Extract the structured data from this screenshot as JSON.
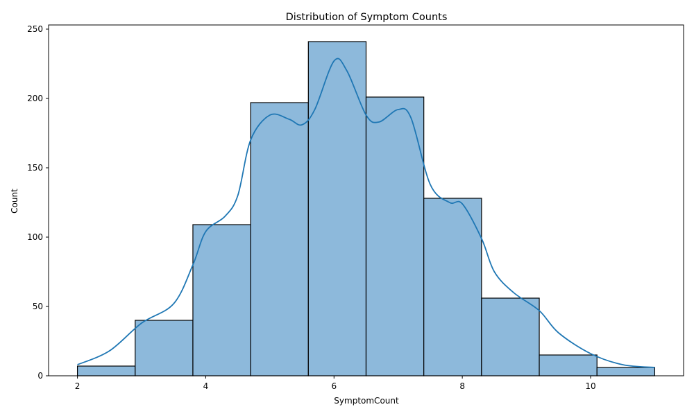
{
  "chart_data": {
    "type": "bar",
    "title": "Distribution of Symptom Counts",
    "xlabel": "SymptomCount",
    "ylabel": "Count",
    "xlim": [
      1.55,
      11.45
    ],
    "ylim": [
      0,
      253
    ],
    "xticks": [
      2,
      4,
      6,
      8,
      10
    ],
    "yticks": [
      0,
      50,
      100,
      150,
      200,
      250
    ],
    "bin_edges": [
      2.0,
      2.9,
      3.8,
      4.7,
      5.6,
      6.5,
      7.4,
      8.3,
      9.2,
      10.1,
      11.0
    ],
    "values": [
      7,
      40,
      109,
      197,
      241,
      201,
      128,
      56,
      15,
      6
    ],
    "kde": {
      "x": [
        2.0,
        2.5,
        3.0,
        3.5,
        3.8,
        4.0,
        4.3,
        4.5,
        4.7,
        5.0,
        5.3,
        5.5,
        5.7,
        6.0,
        6.2,
        6.5,
        6.7,
        7.0,
        7.2,
        7.5,
        7.8,
        8.0,
        8.3,
        8.5,
        8.8,
        9.2,
        9.5,
        10.0,
        10.5,
        11.0
      ],
      "y": [
        8,
        18,
        38,
        52,
        80,
        104,
        115,
        130,
        170,
        188,
        185,
        181,
        192,
        227,
        220,
        188,
        183,
        192,
        186,
        138,
        125,
        124,
        99,
        75,
        60,
        47,
        31,
        16,
        8,
        6
      ]
    },
    "colors": {
      "bar_fill": "#8db9db",
      "bar_edge": "#000000",
      "kde_line": "#1f77b4"
    },
    "grid": false,
    "legend": "none"
  }
}
